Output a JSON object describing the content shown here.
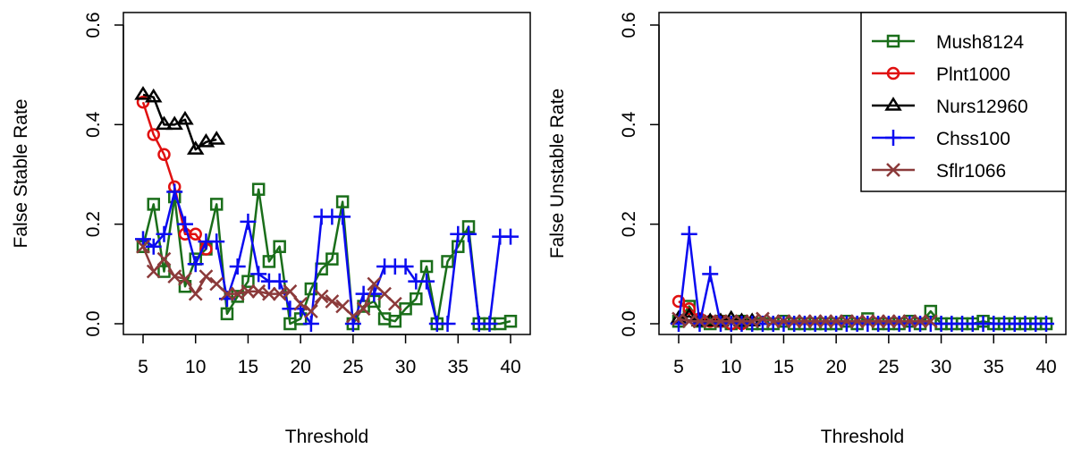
{
  "chart_data": [
    {
      "type": "line",
      "xlabel": "Threshold",
      "ylabel": "False Stable Rate",
      "xlim": [
        5,
        40
      ],
      "ylim": [
        0,
        0.6
      ],
      "xticks": [
        5,
        10,
        15,
        20,
        25,
        30,
        35,
        40
      ],
      "xtick_labels": [
        "5",
        "10",
        "15",
        "20",
        "25",
        "30",
        "35",
        "40"
      ],
      "yticks": [
        0,
        0.2,
        0.4,
        0.6
      ],
      "ytick_labels": [
        "0.0",
        "0.2",
        "0.4",
        "0.6"
      ],
      "grid": false,
      "series": [
        {
          "name": "Mush8124",
          "color": "#1a6e1a",
          "marker": "square",
          "x": [
            5,
            6,
            7,
            8,
            9,
            10,
            11,
            12,
            13,
            14,
            15,
            16,
            17,
            18,
            19,
            20,
            21,
            22,
            23,
            24,
            25,
            26,
            27,
            28,
            29,
            30,
            31,
            32,
            33,
            34,
            35,
            36,
            37,
            38,
            39,
            40
          ],
          "y": [
            0.155,
            0.24,
            0.105,
            0.255,
            0.075,
            0.13,
            0.15,
            0.24,
            0.02,
            0.055,
            0.085,
            0.27,
            0.125,
            0.155,
            0.0,
            0.01,
            0.07,
            0.11,
            0.13,
            0.245,
            0.0,
            0.035,
            0.045,
            0.01,
            0.005,
            0.03,
            0.05,
            0.115,
            0.0,
            0.125,
            0.155,
            0.195,
            0.0,
            0.0,
            0.0,
            0.005
          ]
        },
        {
          "name": "Plnt1000",
          "color": "#e01010",
          "marker": "circle",
          "x": [
            5,
            6,
            7,
            8,
            9,
            10,
            11
          ],
          "y": [
            0.445,
            0.38,
            0.34,
            0.275,
            0.18,
            0.18,
            0.15
          ]
        },
        {
          "name": "Nurs12960",
          "color": "#000000",
          "marker": "triangle",
          "x": [
            5,
            6,
            7,
            8,
            9,
            10,
            11,
            12
          ],
          "y": [
            0.46,
            0.455,
            0.4,
            0.4,
            0.41,
            0.35,
            0.365,
            0.37
          ]
        },
        {
          "name": "Chss100",
          "color": "#0b0bf0",
          "marker": "plus",
          "x": [
            5,
            6,
            7,
            8,
            9,
            10,
            11,
            12,
            13,
            14,
            15,
            16,
            17,
            18,
            19,
            20,
            21,
            22,
            23,
            24,
            25,
            26,
            27,
            28,
            29,
            30,
            31,
            32,
            33,
            34,
            35,
            36,
            37,
            38,
            39,
            40
          ],
          "y": [
            0.17,
            0.155,
            0.18,
            0.265,
            0.2,
            0.12,
            0.165,
            0.165,
            0.05,
            0.115,
            0.205,
            0.1,
            0.085,
            0.085,
            0.03,
            0.03,
            0.0,
            0.215,
            0.215,
            0.215,
            0.0,
            0.06,
            0.06,
            0.115,
            0.115,
            0.115,
            0.085,
            0.085,
            0.0,
            0.0,
            0.18,
            0.18,
            0.0,
            0.0,
            0.175,
            0.175
          ]
        },
        {
          "name": "Sflr1066",
          "color": "#8b3a3a",
          "marker": "cross",
          "x": [
            5,
            6,
            7,
            8,
            9,
            10,
            11,
            12,
            13,
            14,
            15,
            16,
            17,
            18,
            19,
            20,
            21,
            22,
            23,
            24,
            25,
            26,
            27,
            28,
            29
          ],
          "y": [
            0.155,
            0.105,
            0.13,
            0.095,
            0.09,
            0.06,
            0.095,
            0.08,
            0.06,
            0.06,
            0.065,
            0.065,
            0.06,
            0.06,
            0.065,
            0.04,
            0.025,
            0.055,
            0.045,
            0.035,
            0.015,
            0.03,
            0.08,
            0.06,
            0.04
          ]
        }
      ]
    },
    {
      "type": "line",
      "xlabel": "Threshold",
      "ylabel": "False Unstable Rate",
      "xlim": [
        5,
        40
      ],
      "ylim": [
        0,
        0.6
      ],
      "xticks": [
        5,
        10,
        15,
        20,
        25,
        30,
        35,
        40
      ],
      "xtick_labels": [
        "5",
        "10",
        "15",
        "20",
        "25",
        "30",
        "35",
        "40"
      ],
      "yticks": [
        0,
        0.2,
        0.4,
        0.6
      ],
      "ytick_labels": [
        "0.0",
        "0.2",
        "0.4",
        "0.6"
      ],
      "grid": false,
      "legend": {
        "position": "top-right",
        "entries": [
          "Mush8124",
          "Plnt1000",
          "Nurs12960",
          "Chss100",
          "Sflr1066"
        ]
      },
      "series": [
        {
          "name": "Mush8124",
          "color": "#1a6e1a",
          "marker": "square",
          "x": [
            5,
            6,
            7,
            8,
            9,
            10,
            11,
            12,
            13,
            14,
            15,
            16,
            17,
            18,
            19,
            20,
            21,
            22,
            23,
            24,
            25,
            26,
            27,
            28,
            29,
            30,
            31,
            32,
            33,
            34,
            35,
            36,
            37,
            38,
            39,
            40
          ],
          "y": [
            0.005,
            0.035,
            0.005,
            0.0,
            0.005,
            0.0,
            0.005,
            0.0,
            0.0,
            0.0,
            0.005,
            0.0,
            0.0,
            0.0,
            0.0,
            0.0,
            0.005,
            0.0,
            0.01,
            0.0,
            0.0,
            0.0,
            0.005,
            0.0,
            0.025,
            0.0,
            0.0,
            0.0,
            0.0,
            0.005,
            0.0,
            0.0,
            0.0,
            0.0,
            0.0,
            0.0
          ]
        },
        {
          "name": "Plnt1000",
          "color": "#e01010",
          "marker": "circle",
          "x": [
            5,
            6,
            7,
            8,
            9,
            10,
            11
          ],
          "y": [
            0.045,
            0.03,
            0.01,
            0.005,
            0.005,
            0.0,
            0.0
          ]
        },
        {
          "name": "Nurs12960",
          "color": "#000000",
          "marker": "triangle",
          "x": [
            5,
            6,
            7,
            8,
            9,
            10,
            11,
            12
          ],
          "y": [
            0.01,
            0.015,
            0.005,
            0.005,
            0.005,
            0.01,
            0.005,
            0.005
          ]
        },
        {
          "name": "Chss100",
          "color": "#0b0bf0",
          "marker": "plus",
          "x": [
            5,
            6,
            7,
            8,
            9,
            10,
            11,
            12,
            13,
            14,
            15,
            16,
            17,
            18,
            19,
            20,
            21,
            22,
            23,
            24,
            25,
            26,
            27,
            28,
            29,
            30,
            31,
            32,
            33,
            34,
            35,
            36,
            37,
            38,
            39,
            40
          ],
          "y": [
            0.0,
            0.18,
            0.0,
            0.1,
            0.0,
            0.0,
            0.0,
            0.0,
            0.0,
            0.0,
            0.0,
            0.0,
            0.0,
            0.0,
            0.0,
            0.0,
            0.0,
            0.0,
            0.0,
            0.0,
            0.0,
            0.0,
            0.0,
            0.0,
            0.0,
            0.0,
            0.0,
            0.0,
            0.0,
            0.0,
            0.0,
            0.0,
            0.0,
            0.0,
            0.0,
            0.0
          ]
        },
        {
          "name": "Sflr1066",
          "color": "#8b3a3a",
          "marker": "cross",
          "x": [
            5,
            6,
            7,
            8,
            9,
            10,
            11,
            12,
            13,
            14,
            15,
            16,
            17,
            18,
            19,
            20,
            21,
            22,
            23,
            24,
            25,
            26,
            27,
            28,
            29
          ],
          "y": [
            0.01,
            0.005,
            0.005,
            0.005,
            0.005,
            0.005,
            0.005,
            0.005,
            0.01,
            0.005,
            0.005,
            0.005,
            0.005,
            0.005,
            0.005,
            0.005,
            0.005,
            0.005,
            0.005,
            0.005,
            0.005,
            0.005,
            0.005,
            0.005,
            0.005
          ]
        }
      ]
    }
  ]
}
